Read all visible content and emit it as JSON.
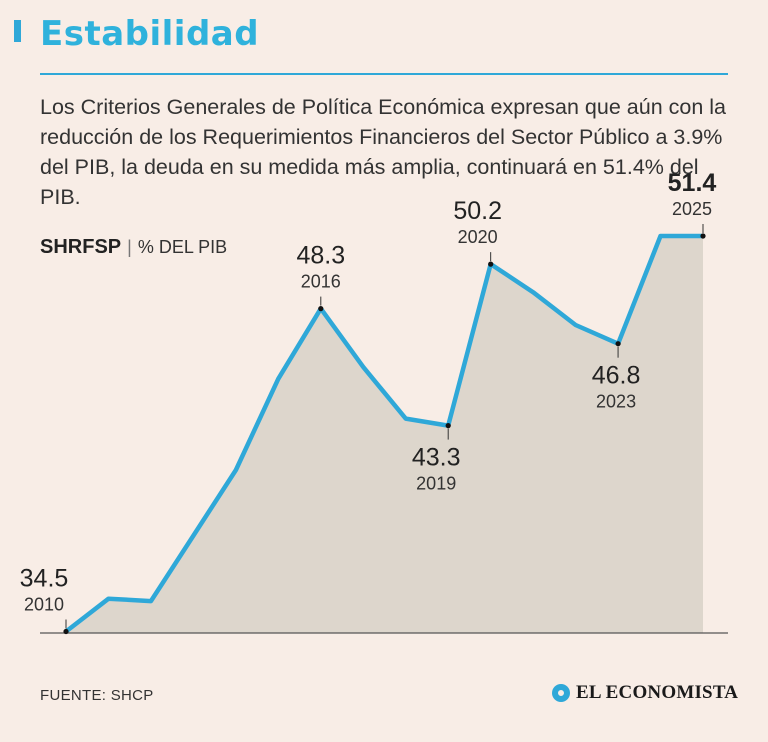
{
  "header": {
    "title": "Estabilidad",
    "description": "Los Criterios Generales de Política Económica expresan que aún con la reducción de los Requerimientos Financieros del Sector Público a 3.9% del PIB, la deuda en su medida más amplia, continuará en 51.4% del PIB."
  },
  "series_label": {
    "name": "SHRFSP",
    "separator": "|",
    "unit": "% DEL PIB"
  },
  "footer": {
    "source": "FUENTE: SHCP",
    "logo": "EL ECONOMISTA"
  },
  "colors": {
    "accent": "#2fa8d8",
    "area_fill": "#ddd6cc",
    "background": "#f8ede6"
  },
  "chart_data": {
    "type": "area",
    "x": [
      "2010",
      "2011",
      "2012",
      "2013",
      "2014",
      "2015",
      "2016",
      "2017",
      "2018",
      "2019",
      "2020",
      "2021",
      "2022",
      "2023",
      "2024",
      "2025"
    ],
    "values": [
      34.5,
      35.9,
      35.8,
      38.6,
      41.4,
      45.3,
      48.3,
      45.8,
      43.6,
      43.3,
      50.2,
      49.0,
      47.6,
      46.8,
      51.4,
      51.4
    ],
    "ylim": [
      32.0,
      52.0
    ],
    "annotations": [
      {
        "year": "2010",
        "value": "34.5",
        "bold": false
      },
      {
        "year": "2016",
        "value": "48.3",
        "bold": false
      },
      {
        "year": "2019",
        "value": "43.3",
        "bold": false
      },
      {
        "year": "2020",
        "value": "50.2",
        "bold": false
      },
      {
        "year": "2023",
        "value": "46.8",
        "bold": false
      },
      {
        "year": "2025",
        "value": "51.4",
        "bold": true
      }
    ]
  }
}
